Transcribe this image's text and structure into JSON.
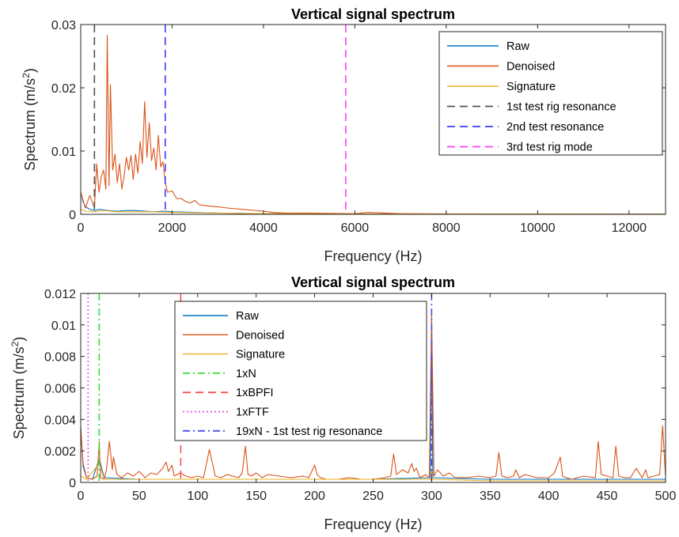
{
  "chart_data": [
    {
      "type": "line",
      "title": "Vertical signal spectrum",
      "xlabel": "Frequency (Hz)",
      "ylabel": "Spectrum (m/s²)",
      "ylabel_main": "Spectrum (m/s",
      "ylabel_sup": "2",
      "ylabel_close": ")",
      "xlim": [
        0,
        12800
      ],
      "ylim": [
        0,
        0.03
      ],
      "xticks": [
        0,
        2000,
        4000,
        6000,
        8000,
        10000,
        12000
      ],
      "xtick_labels": [
        "0",
        "2000",
        "4000",
        "6000",
        "8000",
        "10000",
        "12000"
      ],
      "yticks": [
        0,
        0.01,
        0.02,
        0.03
      ],
      "ytick_labels": [
        "0",
        "0.01",
        "0.02",
        "0.03"
      ],
      "grid": false,
      "legend_position": "top-right",
      "series": [
        {
          "name": "Raw",
          "color": "#0072BD",
          "style": "solid",
          "x": [
            0,
            50,
            100,
            200,
            300,
            400,
            500,
            600,
            800,
            1000,
            1200,
            1400,
            1600,
            1800,
            2000,
            2500,
            3000,
            4000,
            6000,
            12800
          ],
          "values": [
            0.0035,
            0.002,
            0.0012,
            0.0008,
            0.0006,
            0.0008,
            0.0007,
            0.0006,
            0.0005,
            0.0006,
            0.0006,
            0.0005,
            0.0004,
            0.0005,
            0.0004,
            0.0003,
            0.0002,
            0.0001,
            5e-05,
            3e-05
          ]
        },
        {
          "name": "Denoised",
          "color": "#D95319",
          "style": "solid",
          "x": [
            0,
            100,
            200,
            300,
            350,
            400,
            450,
            500,
            550,
            580,
            620,
            650,
            700,
            750,
            800,
            850,
            900,
            950,
            1000,
            1050,
            1100,
            1150,
            1200,
            1250,
            1300,
            1350,
            1400,
            1450,
            1500,
            1550,
            1600,
            1650,
            1700,
            1750,
            1800,
            1850,
            1900,
            2000,
            2100,
            2200,
            2300,
            2400,
            2500,
            2600,
            2700,
            2800,
            3000,
            3200,
            3500,
            4000,
            4200,
            4500,
            5000,
            6000,
            6300,
            7000,
            8000,
            10000,
            12800
          ],
          "values": [
            0.0035,
            0.001,
            0.003,
            0.001,
            0.008,
            0.0035,
            0.006,
            0.007,
            0.004,
            0.0283,
            0.0045,
            0.0205,
            0.007,
            0.0095,
            0.005,
            0.008,
            0.004,
            0.006,
            0.009,
            0.007,
            0.0093,
            0.0055,
            0.0095,
            0.0065,
            0.0115,
            0.008,
            0.0178,
            0.009,
            0.0145,
            0.0085,
            0.0105,
            0.007,
            0.0125,
            0.0075,
            0.0083,
            0.005,
            0.0035,
            0.0037,
            0.0025,
            0.0025,
            0.002,
            0.0018,
            0.0022,
            0.0015,
            0.0014,
            0.0013,
            0.0012,
            0.001,
            0.0008,
            0.0005,
            0.0003,
            0.0002,
            0.0002,
            0.0001,
            0.0003,
            0.0001,
            8e-05,
            5e-05,
            3e-05
          ]
        },
        {
          "name": "Signature",
          "color": "#EDB120",
          "style": "solid",
          "x": [
            0,
            100,
            300,
            500,
            800,
            1000,
            1500,
            2000,
            3000,
            4000,
            6000,
            12800
          ],
          "values": [
            0.0008,
            0.0005,
            0.0004,
            0.0006,
            0.0004,
            0.0004,
            0.0004,
            0.0003,
            0.0002,
            0.0001,
            5e-05,
            3e-05
          ]
        },
        {
          "name": "1st test rig resonance",
          "color": "#525252",
          "style": "dashed",
          "vline": 300
        },
        {
          "name": "2nd test resonance",
          "color": "#3D3DF5",
          "style": "dashed",
          "vline": 1850
        },
        {
          "name": "3rd test rig mode",
          "color": "#FF3DF5",
          "style": "dashed",
          "vline": 5800
        }
      ]
    },
    {
      "type": "line",
      "title": "Vertical signal spectrum",
      "xlabel": "Frequency (Hz)",
      "ylabel": "Spectrum (m/s²)",
      "ylabel_main": "Spectrum (m/s",
      "ylabel_sup": "2",
      "ylabel_close": ")",
      "xlim": [
        0,
        500
      ],
      "ylim": [
        0,
        0.012
      ],
      "xticks": [
        0,
        50,
        100,
        150,
        200,
        250,
        300,
        350,
        400,
        450,
        500
      ],
      "xtick_labels": [
        "0",
        "50",
        "100",
        "150",
        "200",
        "250",
        "300",
        "350",
        "400",
        "450",
        "500"
      ],
      "yticks": [
        0,
        0.002,
        0.004,
        0.006,
        0.008,
        0.01,
        0.012
      ],
      "ytick_labels": [
        "0",
        "0.002",
        "0.004",
        "0.006",
        "0.008",
        "0.01",
        "0.012"
      ],
      "grid": false,
      "legend_position": "top-center",
      "series": [
        {
          "name": "Raw",
          "color": "#0072BD",
          "style": "solid",
          "x": [
            0,
            2,
            5,
            10,
            15.8,
            20,
            50,
            100,
            150,
            200,
            250,
            299,
            300,
            301,
            350,
            400,
            450,
            500
          ],
          "values": [
            0.0035,
            0.001,
            0.0003,
            0.0002,
            0.0015,
            0.0003,
            0.0002,
            0.0002,
            0.0002,
            0.0002,
            0.0002,
            0.0003,
            0.0098,
            0.0003,
            0.0002,
            0.0002,
            0.0002,
            0.0002
          ]
        },
        {
          "name": "Denoised",
          "color": "#D95319",
          "style": "solid",
          "x": [
            0,
            2,
            5,
            10,
            14,
            15.8,
            17,
            20,
            22,
            24.5,
            27,
            28,
            31,
            35,
            40,
            45,
            50,
            55,
            60,
            65,
            70,
            73,
            75,
            78,
            80,
            85,
            90,
            95,
            100,
            105,
            110,
            115,
            120,
            125,
            130,
            135,
            138,
            140.8,
            143,
            146,
            150,
            155,
            160,
            170,
            180,
            190,
            195,
            200,
            202,
            205,
            210,
            220,
            230,
            240,
            250,
            260,
            265,
            267.5,
            270,
            275,
            280,
            283,
            285,
            287,
            290,
            295,
            298,
            300,
            302,
            305,
            310,
            315,
            320,
            330,
            340,
            350,
            355,
            357.5,
            360,
            365,
            370,
            372,
            375,
            380,
            390,
            400,
            405,
            410,
            412,
            415,
            420,
            430,
            440,
            442.5,
            445,
            450,
            455,
            457.5,
            460,
            465,
            470,
            475,
            480,
            483,
            485,
            490,
            495,
            497.5,
            500
          ],
          "values": [
            0.0035,
            0.0012,
            0.0003,
            0.0002,
            0.0004,
            0.0026,
            0.0003,
            0.0002,
            0.0008,
            0.0026,
            0.0008,
            0.0016,
            0.0005,
            0.0003,
            0.0006,
            0.0004,
            0.0007,
            0.0003,
            0.0006,
            0.0005,
            0.0009,
            0.0013,
            0.0007,
            0.0011,
            0.0004,
            0.0006,
            0.0004,
            0.0003,
            0.0004,
            0.0003,
            0.0021,
            0.0004,
            0.0003,
            0.0005,
            0.0004,
            0.0003,
            0.0006,
            0.0023,
            0.0005,
            0.0004,
            0.0006,
            0.0003,
            0.0005,
            0.0004,
            0.0003,
            0.0004,
            0.0003,
            0.0011,
            0.0005,
            0.0003,
            0.0002,
            0.0002,
            0.0003,
            0.0002,
            0.0002,
            0.0003,
            0.0004,
            0.0018,
            0.0005,
            0.0008,
            0.0006,
            0.0012,
            0.0007,
            0.0009,
            0.0003,
            0.0005,
            0.0003,
            0.0107,
            0.0004,
            0.0008,
            0.0004,
            0.0006,
            0.0003,
            0.0003,
            0.0004,
            0.0003,
            0.0004,
            0.0019,
            0.0004,
            0.0003,
            0.0004,
            0.0008,
            0.0003,
            0.0005,
            0.0003,
            0.0003,
            0.0006,
            0.0016,
            0.0004,
            0.0003,
            0.0002,
            0.0004,
            0.0003,
            0.0026,
            0.0005,
            0.0004,
            0.0003,
            0.0023,
            0.0004,
            0.0003,
            0.0003,
            0.0009,
            0.0003,
            0.0008,
            0.0003,
            0.0004,
            0.0005,
            0.0036,
            0.0004
          ]
        },
        {
          "name": "Signature",
          "color": "#EDB120",
          "style": "solid",
          "x": [
            0,
            5,
            15.8,
            20,
            50,
            100,
            150,
            200,
            250,
            299,
            300,
            301,
            350,
            400,
            450,
            500
          ],
          "values": [
            0.0004,
            0.0002,
            0.0012,
            0.0002,
            0.0002,
            0.0002,
            0.0002,
            0.0002,
            0.0002,
            0.0002,
            0.0008,
            0.0002,
            0.0001,
            0.0001,
            0.0001,
            0.0001
          ]
        },
        {
          "name": "1xN",
          "color": "#33DD33",
          "style": "dashdot",
          "vline": 15.8
        },
        {
          "name": "1xBPFI",
          "color": "#FF4D4D",
          "style": "dashed",
          "vline": 85.5
        },
        {
          "name": "1xFTF",
          "color": "#E84DE8",
          "style": "dotted",
          "vline": 6.3
        },
        {
          "name": "19xN - 1st test rig resonance",
          "color": "#4D4DF0",
          "style": "dashdot",
          "vline": 300
        }
      ]
    }
  ]
}
